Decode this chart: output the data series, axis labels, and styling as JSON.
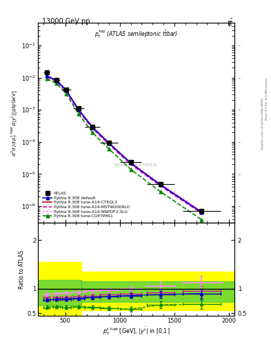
{
  "title_left": "13000 GeV pp",
  "title_right": "tt̅",
  "plot_label": "p_T^{top} (ATLAS semileptonic ttbar)",
  "watermark": "ATLAS_2019_I1750330",
  "ylabel_main": "d²σ / d p_T^{t,had} d |y^{tbar}| [pb/GeV]",
  "ylabel_ratio": "Ratio to ATLAS",
  "xlabel": "p_T^{t,had} [GeV], |y^{tbar}| in [0,1]",
  "right_label1": "Rivet 3.1.10, ≥ 2.8M events",
  "right_label2": "mcplots.cern.ch [arXiv:1306.3436]",
  "atlas_x": [
    330,
    420,
    510,
    620,
    750,
    900,
    1100,
    1375,
    1750
  ],
  "atlas_y": [
    0.0145,
    0.0085,
    0.0042,
    0.0011,
    0.0003,
    9.5e-05,
    2.4e-05,
    5e-06,
    7e-07
  ],
  "atlas_xerr": [
    30,
    30,
    40,
    50,
    70,
    80,
    100,
    125,
    175
  ],
  "atlas_yerr": [
    0.0012,
    0.0007,
    0.00035,
    9e-05,
    2.5e-05,
    8e-06,
    2e-06,
    5e-07,
    8e-08
  ],
  "pythia_default_x": [
    330,
    420,
    510,
    620,
    750,
    900,
    1100,
    1375,
    1750
  ],
  "pythia_default_y": [
    0.0112,
    0.0082,
    0.004,
    0.00102,
    0.000285,
    9.2e-05,
    2.2e-05,
    4.6e-06,
    6.5e-07
  ],
  "pythia_cteq_x": [
    330,
    420,
    510,
    620,
    750,
    900,
    1100,
    1375,
    1750
  ],
  "pythia_cteq_y": [
    0.0112,
    0.0082,
    0.004,
    0.00102,
    0.000285,
    9.2e-05,
    2.2e-05,
    4.6e-06,
    6.5e-07
  ],
  "pythia_mstw_x": [
    330,
    420,
    510,
    620,
    750,
    900,
    1100,
    1375,
    1750
  ],
  "pythia_mstw_y": [
    0.0105,
    0.0076,
    0.0037,
    0.00092,
    0.00026,
    8.4e-05,
    2e-05,
    4.2e-06,
    6e-07
  ],
  "pythia_nnpdf_x": [
    330,
    420,
    510,
    620,
    750,
    900,
    1100,
    1375,
    1750
  ],
  "pythia_nnpdf_y": [
    0.012,
    0.0088,
    0.0043,
    0.00108,
    0.000305,
    9.8e-05,
    2.35e-05,
    4.95e-06,
    7.1e-07
  ],
  "pythia_cuetp_x": [
    330,
    420,
    510,
    620,
    750,
    900,
    1100,
    1375,
    1750
  ],
  "pythia_cuetp_y": [
    0.0092,
    0.0066,
    0.0031,
    0.00076,
    0.000195,
    6.1e-05,
    1.4e-05,
    2.8e-06,
    3.8e-07
  ],
  "ratio_x": [
    330,
    420,
    510,
    620,
    750,
    900,
    1100,
    1375,
    1750
  ],
  "ratio_xerr": [
    30,
    30,
    40,
    50,
    70,
    80,
    100,
    125,
    175
  ],
  "ratio_default_y": [
    0.77,
    0.78,
    0.79,
    0.8,
    0.82,
    0.84,
    0.86,
    0.88,
    0.9
  ],
  "ratio_cteq_y": [
    0.77,
    0.78,
    0.79,
    0.8,
    0.82,
    0.84,
    0.86,
    0.88,
    0.9
  ],
  "ratio_mstw_y": [
    0.82,
    0.82,
    0.83,
    0.84,
    0.86,
    0.88,
    0.9,
    0.93,
    0.95
  ],
  "ratio_nnpdf_y": [
    0.88,
    0.9,
    0.91,
    0.93,
    0.95,
    0.97,
    1.0,
    1.05,
    1.12
  ],
  "ratio_cuetp_y": [
    0.62,
    0.63,
    0.62,
    0.63,
    0.62,
    0.6,
    0.58,
    0.67,
    0.68
  ],
  "ratio_default_yerr": [
    0.03,
    0.03,
    0.03,
    0.03,
    0.04,
    0.04,
    0.05,
    0.07,
    0.1
  ],
  "ratio_cteq_yerr": [
    0.03,
    0.03,
    0.03,
    0.03,
    0.04,
    0.04,
    0.05,
    0.07,
    0.1
  ],
  "ratio_mstw_yerr": [
    0.03,
    0.03,
    0.03,
    0.03,
    0.04,
    0.04,
    0.05,
    0.07,
    0.1
  ],
  "ratio_nnpdf_yerr": [
    0.03,
    0.03,
    0.03,
    0.03,
    0.04,
    0.04,
    0.05,
    0.09,
    0.14
  ],
  "ratio_cuetp_yerr": [
    0.03,
    0.03,
    0.03,
    0.03,
    0.04,
    0.04,
    0.05,
    0.07,
    0.09
  ],
  "color_atlas": "#000000",
  "color_default": "#0000cc",
  "color_cteq": "#cc0000",
  "color_mstw": "#dd00aa",
  "color_nnpdf": "#ff88ff",
  "color_cuetp": "#008800",
  "xlim": [
    250,
    2050
  ],
  "ylim_main": [
    3e-07,
    0.5
  ],
  "ylim_ratio": [
    0.44,
    2.35
  ],
  "ratio_yticks": [
    0.5,
    1.0,
    2.0
  ],
  "xticks": [
    500,
    1000,
    1500,
    2000
  ]
}
